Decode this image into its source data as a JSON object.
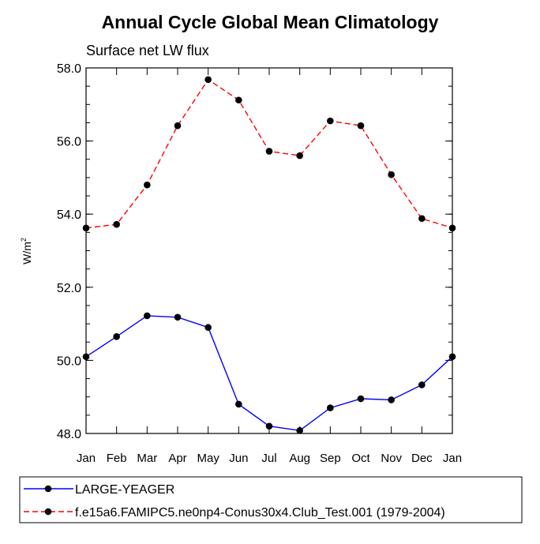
{
  "chart_data": {
    "type": "line",
    "title": "Annual Cycle Global Mean Climatology",
    "subtitle": "Surface net LW flux",
    "ylabel": "W/m",
    "ylabel_sup": "2",
    "xlabel": "",
    "categories": [
      "Jan",
      "Feb",
      "Mar",
      "Apr",
      "May",
      "Jun",
      "Jul",
      "Aug",
      "Sep",
      "Oct",
      "Nov",
      "Dec",
      "Jan"
    ],
    "ylim": [
      48.0,
      58.0
    ],
    "yticks": [
      48.0,
      50.0,
      52.0,
      54.0,
      56.0,
      58.0
    ],
    "ytick_labels": [
      "48.0",
      "50.0",
      "52.0",
      "54.0",
      "56.0",
      "58.0"
    ],
    "grid": false,
    "legend_position": "bottom",
    "series": [
      {
        "name": "LARGE-YEAGER",
        "color": "#0000ff",
        "line_style": "solid",
        "marker": "filled-circle",
        "values": [
          50.1,
          50.65,
          51.22,
          51.18,
          50.9,
          48.8,
          48.2,
          48.08,
          48.7,
          48.95,
          48.92,
          49.33,
          50.1
        ]
      },
      {
        "name": "f.e15a6.FAMIPC5.ne0np4-Conus30x4.Club_Test.001 (1979-2004)",
        "color": "#ff0000",
        "line_style": "dashed",
        "marker": "filled-circle",
        "values": [
          53.62,
          53.72,
          54.8,
          56.42,
          57.68,
          57.12,
          55.72,
          55.6,
          56.55,
          56.42,
          55.08,
          53.88,
          53.62
        ]
      }
    ]
  }
}
